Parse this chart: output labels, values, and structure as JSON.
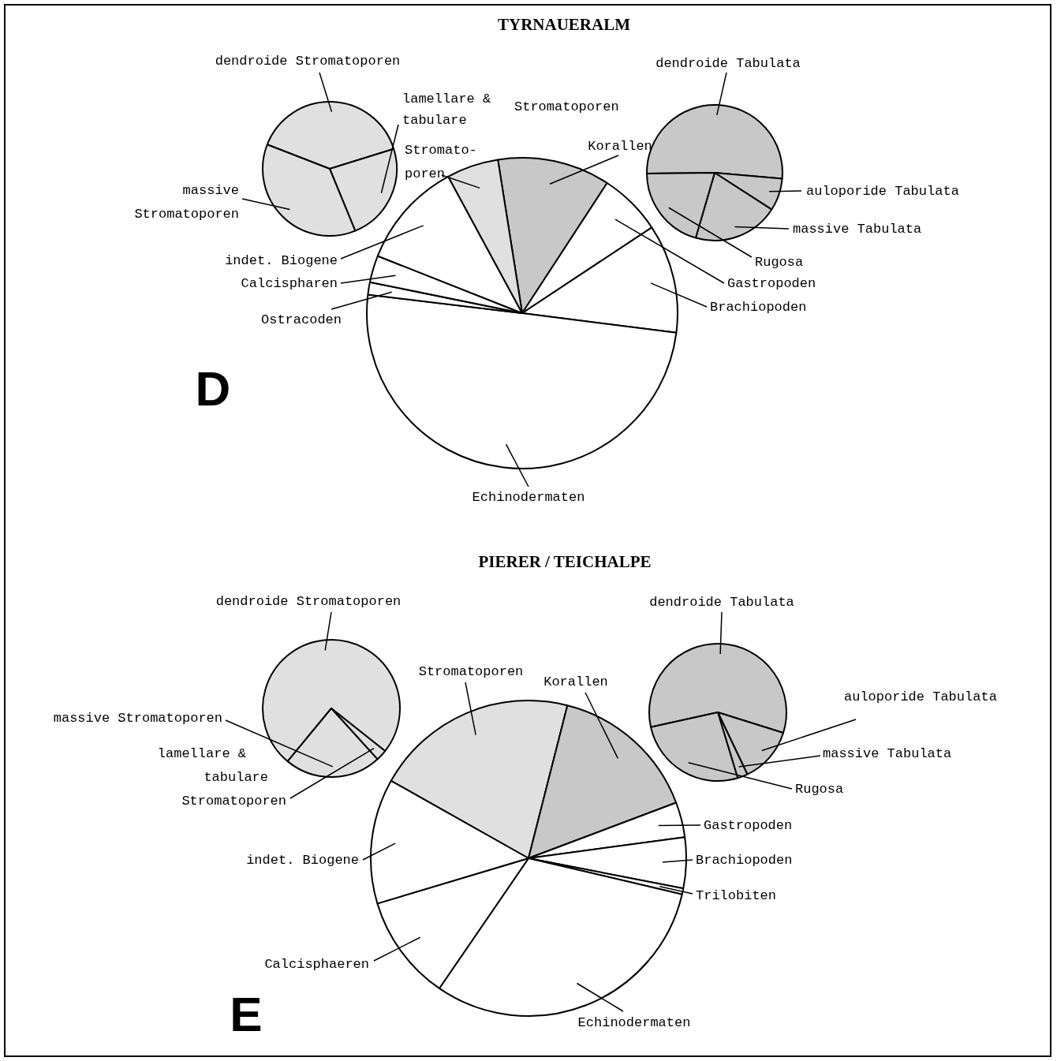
{
  "chart_data": [
    {
      "type": "pie",
      "title": "TYRNAUERALM",
      "annotations": [
        "D"
      ],
      "categories": [
        "Korallen",
        "Gastropoden",
        "Brachiopoden",
        "Echinodermaten",
        "Ostracoden",
        "Calcispharen",
        "indet. Biogene",
        "Stromato-\nporen"
      ],
      "values": [
        11.7,
        6.5,
        11.3,
        49.9,
        1.3,
        2.8,
        11.1,
        5.4
      ],
      "colors": [
        "#c8c8c8",
        "#ffffff",
        "#ffffff",
        "#ffffff",
        "#ffffff",
        "#ffffff",
        "#ffffff",
        "#e0e0e0"
      ]
    },
    {
      "type": "pie",
      "categories": [
        "dendroide Stromatoporen",
        "lamellare &\ntabulare\nStromatoporen",
        "massive\nStromatoporen"
      ],
      "values": [
        39.3,
        23.6,
        37.1
      ],
      "colors": [
        "#e0e0e0",
        "#e0e0e0",
        "#e0e0e0"
      ]
    },
    {
      "type": "pie",
      "categories": [
        "dendroide Tabulata",
        "auloporide Tabulata",
        "massive Tabulata",
        "Rugosa"
      ],
      "values": [
        51.6,
        7.7,
        20.4,
        20.3
      ],
      "colors": [
        "#c8c8c8",
        "#c8c8c8",
        "#c8c8c8",
        "#c8c8c8"
      ]
    },
    {
      "type": "pie",
      "title": "PIERER / TEICHALPE",
      "annotations": [
        "E"
      ],
      "categories": [
        "Stromatoporen",
        "Korallen",
        "Gastropoden",
        "Brachiopoden",
        "Trilobiten",
        "Echinodermaten",
        "Calcisphaeren",
        "indet. Biogene"
      ],
      "values": [
        20.8,
        15.3,
        3.6,
        5.2,
        0.6,
        30.9,
        10.8,
        12.8
      ],
      "colors": [
        "#e0e0e0",
        "#c8c8c8",
        "#ffffff",
        "#ffffff",
        "#ffffff",
        "#ffffff",
        "#ffffff",
        "#ffffff"
      ]
    },
    {
      "type": "pie",
      "categories": [
        "dendroide Stromatoporen",
        "lamellare &\ntabulare\nStromatoporen",
        "massive Stromatoporen"
      ],
      "values": [
        74.7,
        2.6,
        22.7
      ],
      "colors": [
        "#e0e0e0",
        "#e0e0e0",
        "#e0e0e0"
      ]
    },
    {
      "type": "pie",
      "categories": [
        "dendroide Tabulata",
        "auloporide Tabulata",
        "massive Tabulata",
        "Rugosa"
      ],
      "values": [
        58.3,
        13.1,
        2.4,
        26.2
      ],
      "colors": [
        "#c8c8c8",
        "#c8c8c8",
        "#c8c8c8",
        "#c8c8c8"
      ]
    }
  ]
}
